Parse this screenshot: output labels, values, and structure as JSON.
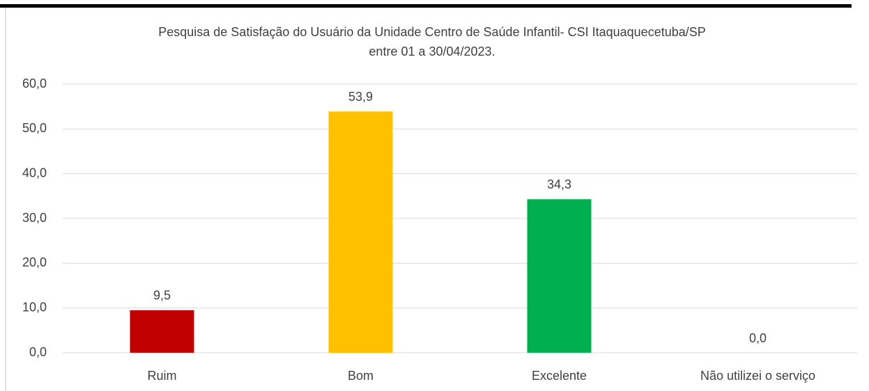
{
  "chart_data": {
    "type": "bar",
    "title": [
      "Pesquisa de Satisfação do Usuário da Unidade Centro de Saúde Infantil- CSI  Itaquaquecetuba/SP",
      "entre 01 a 30/04/2023."
    ],
    "categories": [
      "Ruim",
      "Bom",
      "Excelente",
      "Não utilizei o serviço"
    ],
    "values": [
      9.5,
      53.9,
      34.3,
      0.0
    ],
    "value_labels": [
      "9,5",
      "53,9",
      "34,3",
      "0,0"
    ],
    "colors": [
      "#c00000",
      "#ffc000",
      "#00b050",
      "#4472c4"
    ],
    "ylim": [
      0,
      60
    ],
    "yticks": [
      {
        "value": 0,
        "label": "0,0"
      },
      {
        "value": 10,
        "label": "10,0"
      },
      {
        "value": 20,
        "label": "20,0"
      },
      {
        "value": 30,
        "label": "30,0"
      },
      {
        "value": 40,
        "label": "40,0"
      },
      {
        "value": 50,
        "label": "50,0"
      },
      {
        "value": 60,
        "label": "60,0"
      }
    ],
    "grid": true
  }
}
